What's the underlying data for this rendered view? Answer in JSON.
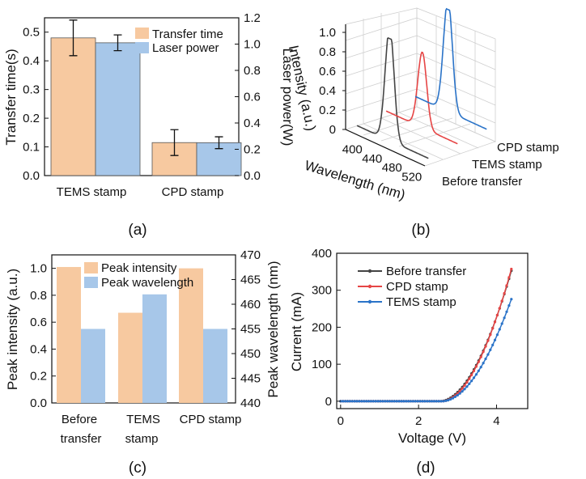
{
  "colors": {
    "orange": "#f7c9a0",
    "blue": "#a7c7e9",
    "black": "#444444",
    "red": "#e64545",
    "line_blue": "#2a73c8"
  },
  "panel_labels": {
    "a": "(a)",
    "b": "(b)",
    "c": "(c)",
    "d": "(d)"
  },
  "chart_data": [
    {
      "id": "a",
      "type": "bar",
      "categories": [
        "TEMS stamp",
        "CPD stamp"
      ],
      "series": [
        {
          "name": "Transfer time",
          "values": [
            0.48,
            0.115
          ],
          "errors": [
            0.062,
            0.045
          ],
          "axis": "left",
          "color": "#f7c9a0"
        },
        {
          "name": "Laser power",
          "values": [
            1.01,
            0.25
          ],
          "errors": [
            0.06,
            0.045
          ],
          "axis": "right",
          "color": "#a7c7e9"
        }
      ],
      "ylabel": "Transfer time(s)",
      "ylabel_right": "Laser power(W)",
      "ylim": [
        0,
        0.55
      ],
      "ylim_right": [
        0,
        1.2
      ],
      "yticks": [
        "0.0",
        "0.1",
        "0.2",
        "0.3",
        "0.4",
        "0.5"
      ],
      "yticks_right": [
        "0.0",
        "0.2",
        "0.4",
        "0.6",
        "0.8",
        "1.0",
        "1.2"
      ],
      "legend": "top-right"
    },
    {
      "id": "b",
      "type": "line",
      "subtype": "3d-waterfall",
      "zlabel": "Intensity (a.u.)",
      "xlabel": "Wavelength (nm)",
      "xticks": [
        "400",
        "440",
        "480",
        "520"
      ],
      "zticks": [
        "0",
        "0.2",
        "0.4",
        "0.6",
        "0.8",
        "1.0"
      ],
      "depth_labels": [
        "Before transfer",
        "TEMS stamp",
        "CPD stamp"
      ],
      "series": [
        {
          "name": "Before transfer",
          "peak_nm": 455,
          "peak_intensity": 1.01,
          "color": "#444444"
        },
        {
          "name": "TEMS stamp",
          "peak_nm": 462,
          "peak_intensity": 0.67,
          "color": "#e64545"
        },
        {
          "name": "CPD stamp",
          "peak_nm": 455,
          "peak_intensity": 1.0,
          "color": "#2a73c8"
        }
      ]
    },
    {
      "id": "c",
      "type": "bar",
      "categories": [
        "Before transfer",
        "TEMS stamp",
        "CPD stamp"
      ],
      "category_lines": [
        [
          "Before",
          "transfer"
        ],
        [
          "TEMS",
          "stamp"
        ],
        [
          "CPD stamp"
        ]
      ],
      "series": [
        {
          "name": "Peak intensity",
          "values": [
            1.01,
            0.67,
            1.0
          ],
          "axis": "left",
          "color": "#f7c9a0"
        },
        {
          "name": "Peak wavelength",
          "values": [
            455,
            462,
            455
          ],
          "axis": "right",
          "color": "#a7c7e9"
        }
      ],
      "ylabel": "Peak intensity (a.u.)",
      "ylabel_right": "Peak wavelength (nm)",
      "ylim": [
        0.0,
        1.1
      ],
      "ylim_right": [
        440,
        470
      ],
      "yticks": [
        "0.0",
        "0.2",
        "0.4",
        "0.6",
        "0.8",
        "1.0"
      ],
      "yticks_right": [
        "440",
        "445",
        "450",
        "455",
        "460",
        "465",
        "470"
      ],
      "legend": "top-center"
    },
    {
      "id": "d",
      "type": "line",
      "series": [
        {
          "name": "Before transfer",
          "color": "#444444",
          "v_on": 2.55,
          "i_max": 360
        },
        {
          "name": "CPD stamp",
          "color": "#e64545",
          "v_on": 2.6,
          "i_max": 365
        },
        {
          "name": "TEMS stamp",
          "color": "#2a73c8",
          "v_on": 2.6,
          "i_max": 282
        }
      ],
      "x_range": [
        0,
        4.4
      ],
      "xlabel": "Voltage (V)",
      "ylabel": "Current (mA)",
      "xlim": [
        -0.1,
        4.8
      ],
      "ylim": [
        -20,
        400
      ],
      "xticks": [
        "0",
        "2",
        "4"
      ],
      "yticks": [
        "0",
        "100",
        "200",
        "300",
        "400"
      ],
      "legend": "top-left"
    }
  ]
}
